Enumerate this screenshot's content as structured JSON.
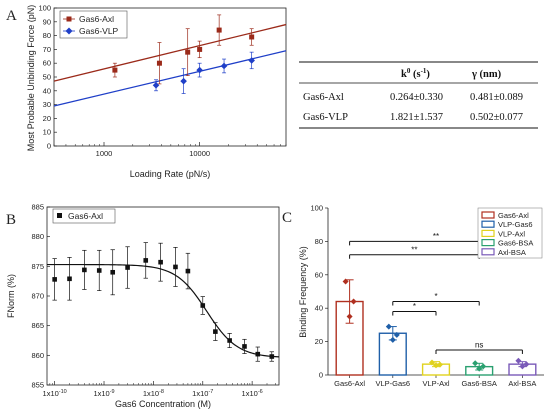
{
  "chart_data": [
    {
      "panel": "A",
      "type": "scatter",
      "xscale": "log",
      "xlabel": "Loading Rate (pN/s)",
      "ylabel": "Most Probable Unbinding Force (pN)",
      "xlim": [
        300,
        80000
      ],
      "ylim": [
        0,
        100
      ],
      "x_ticks": [
        1000,
        10000
      ],
      "x_tick_labels": [
        "1000",
        "10000"
      ],
      "y_ticks": [
        0,
        10,
        20,
        30,
        40,
        50,
        60,
        70,
        80,
        90,
        100
      ],
      "grid": false,
      "legend_position": "top-left",
      "series": [
        {
          "name": "Gas6-Axl",
          "color": "#9b2a1a",
          "marker": "square",
          "points": [
            {
              "x": 1300,
              "y": 55,
              "err": 5
            },
            {
              "x": 3800,
              "y": 60,
              "err": 15
            },
            {
              "x": 7500,
              "y": 68,
              "err": 17
            },
            {
              "x": 10000,
              "y": 70,
              "err": 6
            },
            {
              "x": 16000,
              "y": 84,
              "err": 11
            },
            {
              "x": 35000,
              "y": 79,
              "err": 6
            }
          ],
          "fit_line": [
            [
              300,
              47
            ],
            [
              80000,
              88
            ]
          ]
        },
        {
          "name": "Gas6-VLP",
          "color": "#1f3fc8",
          "marker": "diamond",
          "points": [
            {
              "x": 3500,
              "y": 44,
              "err": 4
            },
            {
              "x": 6800,
              "y": 47,
              "err": 9
            },
            {
              "x": 10000,
              "y": 55,
              "err": 5
            },
            {
              "x": 18000,
              "y": 58,
              "err": 5
            },
            {
              "x": 35000,
              "y": 62,
              "err": 6
            }
          ],
          "fit_line": [
            [
              300,
              29
            ],
            [
              80000,
              69
            ]
          ]
        }
      ]
    },
    {
      "panel": "A-table",
      "type": "table",
      "columns": [
        "",
        "k⁰ (s⁻¹)",
        "γ (nm)"
      ],
      "header": {
        "k0": "k",
        "k0_sup": "0",
        "k0_unit": " (s",
        "k0_unit_sup": "-1",
        "k0_close": ")",
        "gamma": "γ (nm)"
      },
      "rows": [
        {
          "label": "Gas6-Axl",
          "k0": "0.264±0.330",
          "gamma": "0.481±0.089"
        },
        {
          "label": "Gas6-VLP",
          "k0": "1.821±1.537",
          "gamma": "0.502±0.077"
        }
      ]
    },
    {
      "panel": "B",
      "type": "scatter",
      "xscale": "log",
      "xlabel": "Gas6 Concentration (M)",
      "ylabel": "FNorm (%)",
      "xlim": [
        7e-11,
        3.5e-06
      ],
      "ylim": [
        855,
        885
      ],
      "x_ticks": [
        1e-10,
        1e-09,
        1e-08,
        1e-07,
        1e-06
      ],
      "x_tick_labels": [
        {
          "b": "1x10",
          "e": "-10"
        },
        {
          "b": "1x10",
          "e": "-9"
        },
        {
          "b": "1x10",
          "e": "-8"
        },
        {
          "b": "1x10",
          "e": "-7"
        },
        {
          "b": "1x10",
          "e": "-6"
        }
      ],
      "y_ticks": [
        855,
        860,
        865,
        870,
        875,
        880,
        885
      ],
      "grid": false,
      "legend_position": "top-left",
      "series": [
        {
          "name": "Gas6-Axl",
          "color": "#111111",
          "marker": "square",
          "points": [
            {
              "x": 1e-10,
              "y": 872.8,
              "err": 3.5
            },
            {
              "x": 2e-10,
              "y": 872.9,
              "err": 3.6
            },
            {
              "x": 4e-10,
              "y": 874.4,
              "err": 3.3
            },
            {
              "x": 8e-10,
              "y": 874.3,
              "err": 3.4
            },
            {
              "x": 1.5e-09,
              "y": 874.0,
              "err": 3.8
            },
            {
              "x": 3e-09,
              "y": 874.8,
              "err": 3.5
            },
            {
              "x": 7e-09,
              "y": 876.0,
              "err": 3.0
            },
            {
              "x": 1.4e-08,
              "y": 875.7,
              "err": 3.2
            },
            {
              "x": 2.8e-08,
              "y": 874.9,
              "err": 3.3
            },
            {
              "x": 5e-08,
              "y": 874.2,
              "err": 3.0
            },
            {
              "x": 1e-07,
              "y": 868.4,
              "err": 1.5
            },
            {
              "x": 1.8e-07,
              "y": 864.0,
              "err": 1.5
            },
            {
              "x": 3.5e-07,
              "y": 862.5,
              "err": 1.2
            },
            {
              "x": 7e-07,
              "y": 861.5,
              "err": 1.2
            },
            {
              "x": 1.3e-06,
              "y": 860.2,
              "err": 1.2
            },
            {
              "x": 2.5e-06,
              "y": 859.8,
              "err": 0.8
            }
          ],
          "fit": {
            "top": 875.3,
            "bottom": 859.6,
            "ec50": 1.2e-07,
            "hill": 1.4
          }
        }
      ]
    },
    {
      "panel": "C",
      "type": "bar",
      "ylabel": "Binding Frequency (%)",
      "ylim": [
        0,
        100
      ],
      "y_ticks": [
        0,
        20,
        40,
        60,
        80,
        100
      ],
      "categories": [
        "Gas6-Axl",
        "VLP-Gas6",
        "VLP-Axl",
        "Gas6-BSA",
        "Axl-BSA"
      ],
      "values": [
        44,
        25,
        6.5,
        5,
        6.5
      ],
      "errors": [
        13,
        4,
        1.5,
        2,
        1.5
      ],
      "colors": [
        "#b03020",
        "#1f5fa8",
        "#e0d21f",
        "#2aa070",
        "#7a5ab8"
      ],
      "points": [
        [
          56,
          44,
          35
        ],
        [
          29,
          24,
          21
        ],
        [
          7.5,
          6.2,
          5.8
        ],
        [
          7,
          5.2,
          3.8
        ],
        [
          8.5,
          6.4,
          5.2
        ]
      ],
      "legend_position": "top-right",
      "legend": [
        "Gas6-Axl",
        "VLP-Gas6",
        "VLP-Axl",
        "Gas6-BSA",
        "Axl-BSA"
      ],
      "significance": [
        {
          "from": 0,
          "to": 4,
          "label": "**",
          "y": 80
        },
        {
          "from": 0,
          "to": 3,
          "label": "**",
          "y": 72
        },
        {
          "from": 1,
          "to": 3,
          "label": "*",
          "y": 44
        },
        {
          "from": 1,
          "to": 2,
          "label": "*",
          "y": 38
        },
        {
          "from": 2,
          "to": 4,
          "label": "ns",
          "y": 15
        }
      ]
    }
  ],
  "panel_labels": [
    "A",
    "B",
    "C"
  ]
}
